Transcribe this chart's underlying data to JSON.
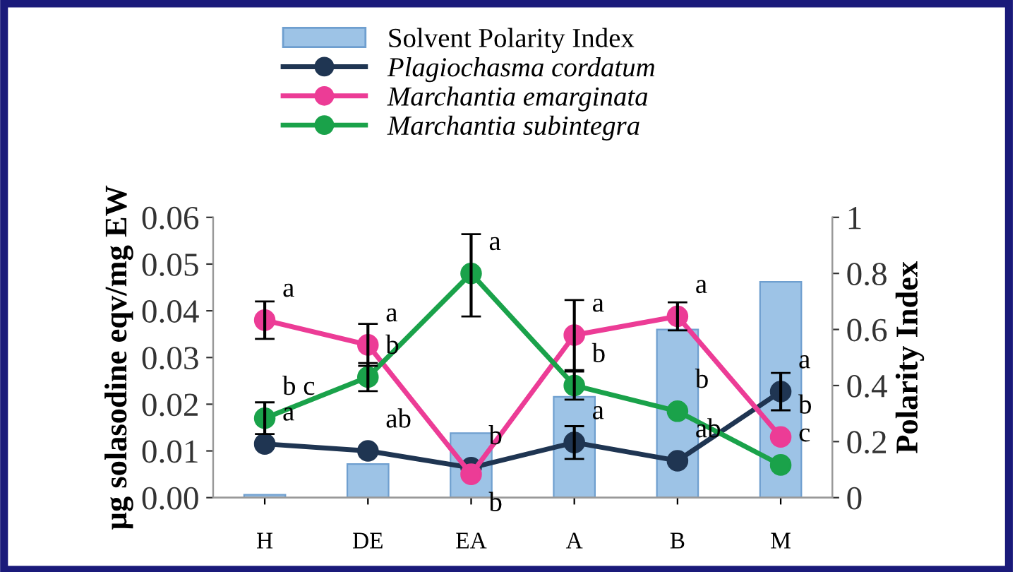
{
  "chart_data": {
    "type": "line",
    "ylabel": "µg solasodine eqv/mg EW",
    "y2label": "Polarity Index",
    "categories": [
      "H",
      "DE",
      "EA",
      "A",
      "B",
      "M"
    ],
    "ylim": [
      0,
      0.06
    ],
    "yticks": [
      "0.00",
      0.01,
      0.02,
      0.03,
      0.04,
      0.05,
      0.06
    ],
    "y2lim": [
      0,
      1
    ],
    "y2ticks": [
      0,
      0.2,
      0.4,
      0.6,
      0.8,
      1
    ],
    "marker": "circle",
    "legend": "top left",
    "grid": false,
    "series": [
      {
        "name": "Solvent Polarity Index",
        "type": "bar",
        "axis": "y2",
        "color": "#9dc3e6",
        "values": [
          0.01,
          0.12,
          0.23,
          0.36,
          0.6,
          0.77
        ]
      },
      {
        "name": "Plagiochasma cordatum",
        "color": "#1f3552",
        "values": [
          0.0115,
          0.01,
          0.0064,
          0.0118,
          0.0079,
          0.0227
        ],
        "errors": [
          null,
          null,
          null,
          0.0035,
          null,
          0.004
        ],
        "value_labels": [
          "a",
          "ab",
          "b",
          "a",
          "ab",
          "a"
        ]
      },
      {
        "name": "Marchantia emarginata",
        "color": "#ec3c96",
        "values": [
          0.038,
          0.0327,
          0.005,
          0.0348,
          0.0388,
          0.013
        ],
        "errors": [
          0.004,
          0.0045,
          null,
          0.0075,
          0.003,
          null
        ],
        "value_labels": [
          "a",
          "a",
          "b",
          "a",
          "a",
          "b"
        ]
      },
      {
        "name": "Marchantia subintegra",
        "color": "#1aa24a",
        "values": [
          0.017,
          0.0258,
          0.048,
          0.024,
          0.0185,
          0.007
        ],
        "errors": [
          0.0034,
          0.003,
          [
            0.0388,
            0.0564
          ],
          0.003,
          null,
          null
        ],
        "value_labels": [
          "b c",
          "b",
          "a",
          "b",
          "b",
          "c"
        ]
      }
    ]
  }
}
